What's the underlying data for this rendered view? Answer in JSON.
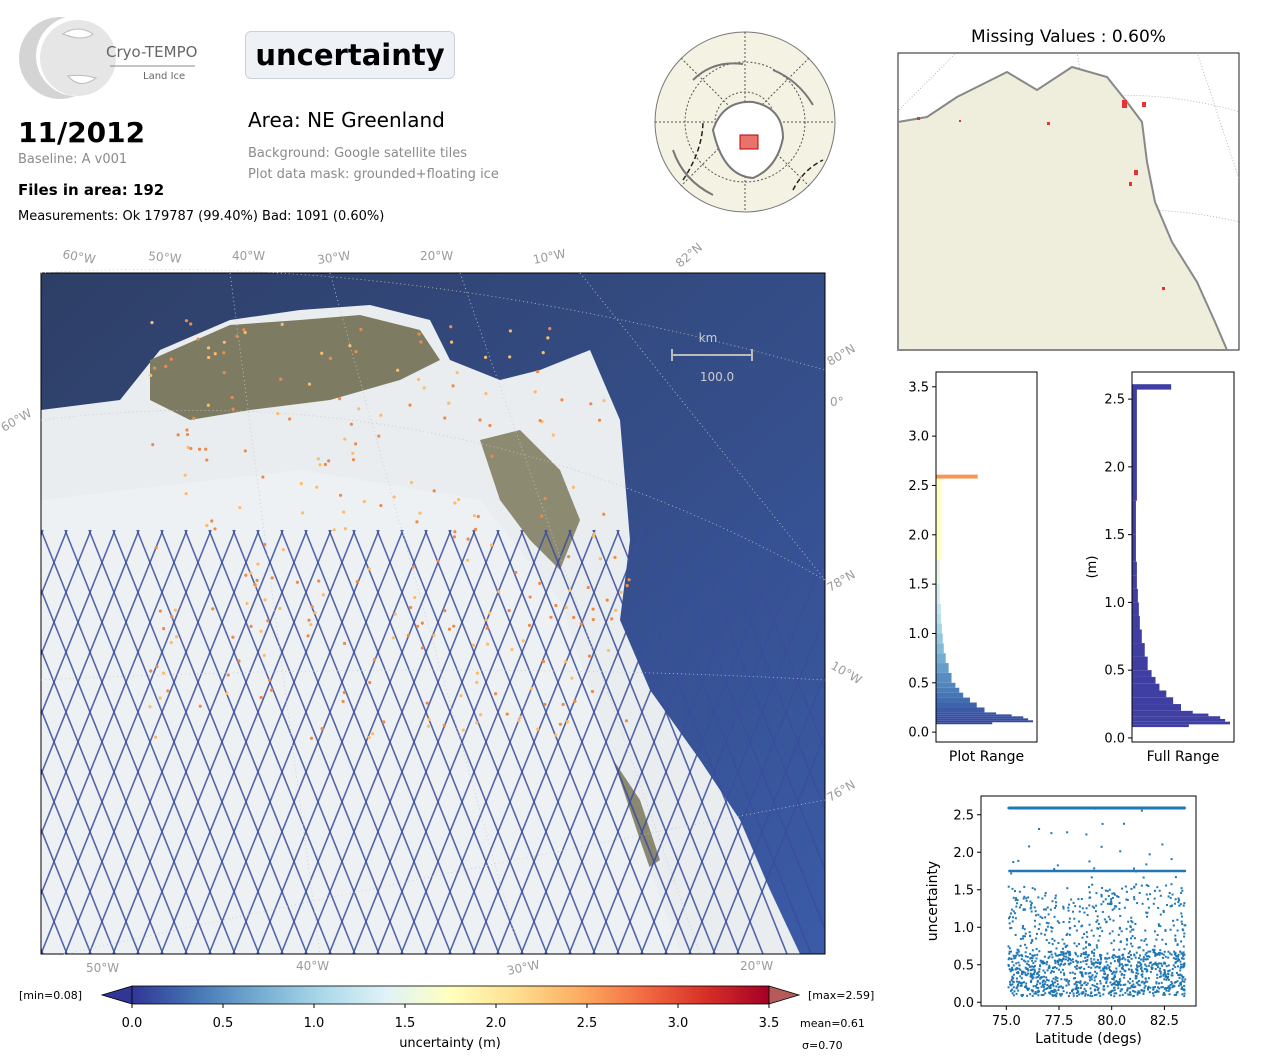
{
  "header": {
    "logo_name": "Cryo-TEMPO",
    "logo_sub": "Land Ice",
    "date": "11/2012",
    "baseline": "Baseline: A v001",
    "files": "Files in area: 192",
    "measurements": "Measurements: Ok 179787 (99.40%) Bad: 1091 (0.60%)",
    "variable": "uncertainty",
    "area": "Area: NE Greenland",
    "background": "Background: Google satellite tiles",
    "mask": "Plot data mask: grounded+floating ice"
  },
  "main_map": {
    "top_lon_labels": [
      "60°W",
      "50°W",
      "40°W",
      "30°W",
      "20°W",
      "10°W",
      "82°N"
    ],
    "bottom_lon_labels": [
      "50°W",
      "40°W",
      "30°W",
      "20°W"
    ],
    "left_labels": [
      "60°W"
    ],
    "right_labels": [
      "80°N",
      "0°",
      "78°N",
      "10°W",
      "76°N"
    ],
    "scale_unit": "km",
    "scale_value": "100.0"
  },
  "colorbar": {
    "min_label": "[min=0.08]",
    "max_label": "[max=2.59]",
    "ticks": [
      "0.0",
      "0.5",
      "1.0",
      "1.5",
      "2.0",
      "2.5",
      "3.0",
      "3.5"
    ],
    "label": "uncertainty (m)",
    "mean": "mean=0.61",
    "sigma": "σ=0.70",
    "colors": [
      "#313695",
      "#4575b4",
      "#74add1",
      "#abd9e9",
      "#e0f3f8",
      "#ffffbf",
      "#fee090",
      "#fdae61",
      "#f46d43",
      "#d73027",
      "#a50026"
    ]
  },
  "missing": {
    "title": "Missing Values : 0.60%"
  },
  "chart_data": [
    {
      "type": "bar",
      "name": "plot-range-histogram",
      "orientation": "horizontal",
      "xlabel": "Plot Range",
      "ylabel": "",
      "ylim": [
        -0.1,
        3.65
      ],
      "yticks": [
        "0.0",
        "0.5",
        "1.0",
        "1.5",
        "2.0",
        "2.5",
        "3.0",
        "3.5"
      ],
      "bins": [
        0.08,
        0.1,
        0.12,
        0.14,
        0.16,
        0.18,
        0.2,
        0.25,
        0.3,
        0.35,
        0.4,
        0.45,
        0.5,
        0.6,
        0.7,
        0.8,
        0.9,
        1.0,
        1.1,
        1.2,
        1.3,
        1.5,
        1.75,
        2.59
      ],
      "counts": [
        0.58,
        1.0,
        0.95,
        0.9,
        0.78,
        0.62,
        0.5,
        0.42,
        0.35,
        0.28,
        0.24,
        0.2,
        0.16,
        0.13,
        0.1,
        0.08,
        0.07,
        0.06,
        0.05,
        0.05,
        0.04,
        0.04,
        0.05,
        0.43
      ]
    },
    {
      "type": "bar",
      "name": "full-range-histogram",
      "orientation": "horizontal",
      "xlabel": "Full Range",
      "ylabel": "(m)",
      "ylim": [
        -0.03,
        2.7
      ],
      "yticks": [
        "0.0",
        "0.5",
        "1.0",
        "1.5",
        "2.0",
        "2.5"
      ],
      "bins": [
        0.08,
        0.1,
        0.12,
        0.14,
        0.16,
        0.18,
        0.2,
        0.25,
        0.3,
        0.35,
        0.4,
        0.45,
        0.5,
        0.6,
        0.7,
        0.8,
        0.9,
        1.0,
        1.1,
        1.2,
        1.3,
        1.5,
        1.75,
        2.59
      ],
      "counts": [
        0.58,
        1.0,
        0.95,
        0.9,
        0.78,
        0.62,
        0.5,
        0.42,
        0.35,
        0.28,
        0.24,
        0.2,
        0.16,
        0.13,
        0.1,
        0.08,
        0.07,
        0.06,
        0.05,
        0.05,
        0.04,
        0.04,
        0.05,
        0.4
      ]
    },
    {
      "type": "scatter",
      "name": "latitude-scatter",
      "xlabel": "Latitude (degs)",
      "ylabel": "uncertainty",
      "xlim": [
        73.8,
        84.0
      ],
      "ylim": [
        -0.05,
        2.75
      ],
      "xticks": [
        "75.0",
        "77.5",
        "80.0",
        "82.5"
      ],
      "yticks": [
        "0.0",
        "0.5",
        "1.0",
        "1.5",
        "2.0",
        "2.5"
      ],
      "x_range": [
        75.1,
        83.5
      ],
      "y_range": [
        0.08,
        2.59
      ],
      "color": "#1f77b4"
    }
  ]
}
